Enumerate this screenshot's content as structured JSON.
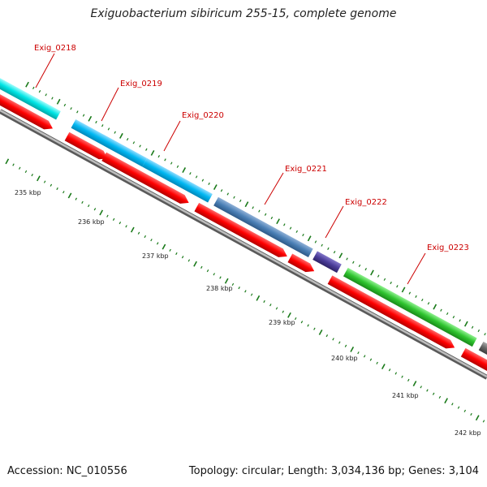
{
  "title": "Exiguobacterium sibiricum 255-15, complete genome",
  "footer": {
    "accession": "Accession: NC_010556",
    "summary": "Topology: circular; Length: 3,034,136 bp; Genes: 3,104"
  },
  "colors": {
    "backbone": "#8c8c8c",
    "tick": "#1a7a1a",
    "label": "#cc0000",
    "cds": "#ff0000",
    "kbp_label": "#222222"
  },
  "kbp_labels": [
    "235 kbp",
    "236 kbp",
    "237 kbp",
    "238 kbp",
    "239 kbp",
    "240 kbp",
    "241 kbp",
    "242 kbp"
  ],
  "genes": [
    {
      "id": "Exig_0218",
      "color": "#00e5e5"
    },
    {
      "id": "Exig_0219",
      "color": "#00bfff"
    },
    {
      "id": "Exig_0220",
      "color": "#00bfff"
    },
    {
      "id": "Exig_0221",
      "color": "#4a7fb5"
    },
    {
      "id": "Exig_0222",
      "color": "#4b3d9a"
    },
    {
      "id": "Exig_0223",
      "color": "#33cc33"
    },
    {
      "id": "",
      "color": "#666666"
    }
  ]
}
